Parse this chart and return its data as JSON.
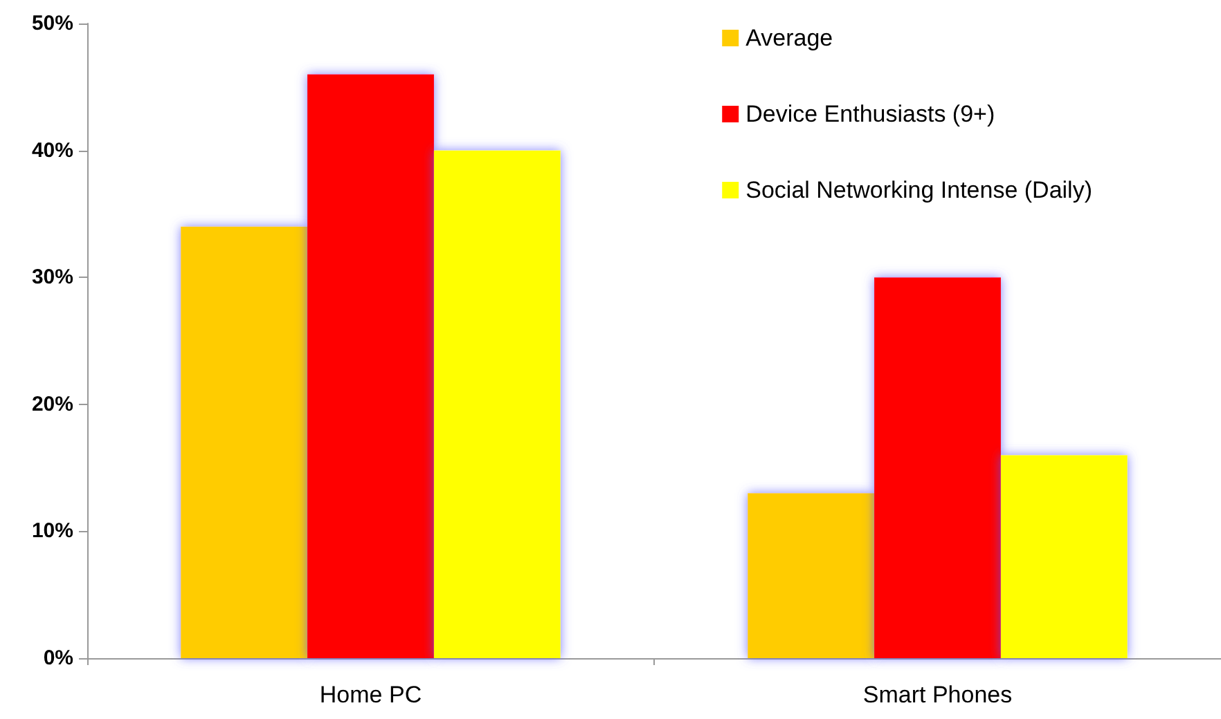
{
  "chart_data": {
    "type": "bar",
    "categories": [
      "Home PC",
      "Smart Phones"
    ],
    "series": [
      {
        "name": "Average",
        "color": "#ffcc00",
        "values": [
          34,
          13
        ]
      },
      {
        "name": "Device Enthusiasts (9+)",
        "color": "#ff0000",
        "values": [
          46,
          30
        ]
      },
      {
        "name": "Social Networking Intense (Daily)",
        "color": "#ffff00",
        "values": [
          40,
          16
        ]
      }
    ],
    "ylim": [
      0,
      50
    ],
    "yticks": [
      {
        "value": 0,
        "label": "0%"
      },
      {
        "value": 10,
        "label": "10%"
      },
      {
        "value": 20,
        "label": "20%"
      },
      {
        "value": 30,
        "label": "30%"
      },
      {
        "value": 40,
        "label": "40%"
      },
      {
        "value": 50,
        "label": "50%"
      }
    ],
    "grid": false,
    "legend": "top right"
  }
}
